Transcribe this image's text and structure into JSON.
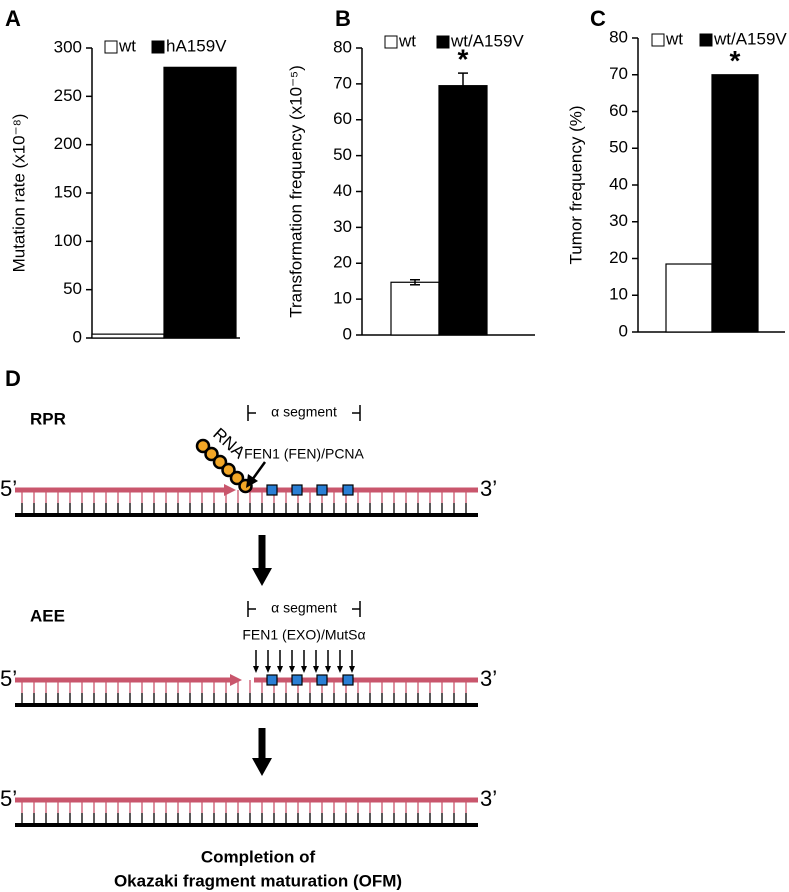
{
  "chart_data": [
    {
      "type": "bar",
      "panel_label": "A",
      "ylabel": "Mutation rate (x10⁻⁸)",
      "categories": [
        null
      ],
      "series": [
        {
          "name": "wt",
          "color": "#ffffff",
          "values": [
            4
          ]
        },
        {
          "name": "hA159V",
          "color": "#000000",
          "values": [
            280
          ]
        }
      ],
      "ylim": [
        0,
        300
      ],
      "yticks": [
        0,
        50,
        100,
        150,
        200,
        250,
        300
      ]
    },
    {
      "type": "bar",
      "panel_label": "B",
      "ylabel": "Transformation frequency (x10⁻⁵)",
      "categories": [
        null
      ],
      "series": [
        {
          "name": "wt",
          "color": "#ffffff",
          "values": [
            14.7
          ],
          "errors": [
            0.7
          ]
        },
        {
          "name": "wt/A159V",
          "color": "#000000",
          "values": [
            69.5
          ],
          "errors": [
            3.5
          ]
        }
      ],
      "ylim": [
        0,
        80
      ],
      "yticks": [
        0,
        10,
        20,
        30,
        40,
        50,
        60,
        70,
        80
      ],
      "annotation": "*"
    },
    {
      "type": "bar",
      "panel_label": "C",
      "ylabel": "Tumor  frequency (%)",
      "categories": [
        null
      ],
      "series": [
        {
          "name": "wt",
          "color": "#ffffff",
          "values": [
            18.5
          ]
        },
        {
          "name": "wt/A159V",
          "color": "#000000",
          "values": [
            70
          ]
        }
      ],
      "ylim": [
        0,
        80
      ],
      "yticks": [
        0,
        10,
        20,
        30,
        40,
        50,
        60,
        70,
        80
      ],
      "annotation": "*"
    }
  ],
  "diagram": {
    "panel_label": "D",
    "end5": "5’",
    "end3": "3’",
    "rna": "RNA",
    "steps": [
      {
        "label": "RPR",
        "segment": "α segment",
        "enzyme": "FEN1 (FEN)/PCNA"
      },
      {
        "label": "AEE",
        "segment": "α segment",
        "enzyme": "FEN1 (EXO)/MutSα"
      }
    ],
    "caption": [
      "Completion of",
      "Okazaki fragment maturation (OFM)"
    ]
  }
}
